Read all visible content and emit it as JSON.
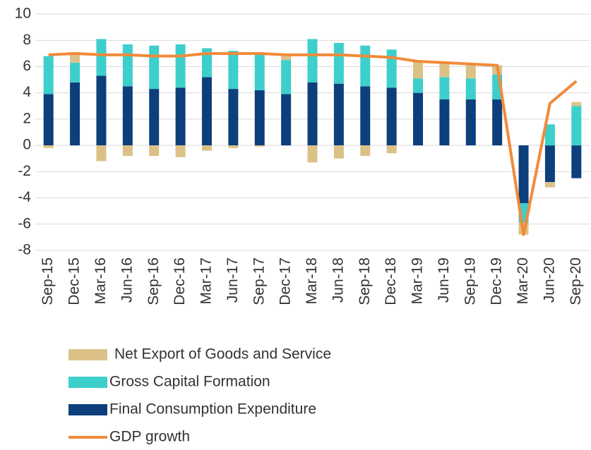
{
  "chart_data": {
    "type": "bar",
    "stacked": true,
    "categories": [
      "Sep-15",
      "Dec-15",
      "Mar-16",
      "Jun-16",
      "Sep-16",
      "Dec-16",
      "Mar-17",
      "Jun-17",
      "Sep-17",
      "Dec-17",
      "Mar-18",
      "Jun-18",
      "Sep-18",
      "Dec-18",
      "Mar-19",
      "Jun-19",
      "Sep-19",
      "Dec-19",
      "Mar-20",
      "Jun-20",
      "Sep-20"
    ],
    "series": [
      {
        "name": "Net Export of Goods and Service",
        "type": "bar",
        "color": "#dcc187",
        "values": [
          -0.2,
          0.8,
          -1.2,
          -0.8,
          -0.8,
          -0.9,
          -0.4,
          -0.2,
          -0.1,
          0.3,
          -1.3,
          -1.0,
          -0.8,
          -0.6,
          1.3,
          1.1,
          1.0,
          0.7,
          -0.9,
          -0.4,
          0.3
        ]
      },
      {
        "name": "Gross Capital Formation",
        "type": "bar",
        "color": "#3dcfcb",
        "values": [
          2.9,
          1.5,
          2.8,
          3.2,
          3.3,
          3.3,
          2.2,
          2.9,
          2.8,
          2.6,
          3.3,
          3.1,
          3.1,
          2.9,
          1.1,
          1.7,
          1.6,
          1.9,
          -1.5,
          1.6,
          3.0
        ]
      },
      {
        "name": "Final Consumption Expenditure",
        "type": "bar",
        "color": "#0d3f7c",
        "values": [
          3.9,
          4.8,
          5.3,
          4.5,
          4.3,
          4.4,
          5.2,
          4.3,
          4.2,
          3.9,
          4.8,
          4.7,
          4.5,
          4.4,
          4.0,
          3.5,
          3.5,
          3.5,
          -4.4,
          -2.8,
          -2.5
        ]
      },
      {
        "name": "GDP growth",
        "type": "line",
        "color": "#f28a3a",
        "values": [
          6.9,
          7.0,
          6.9,
          6.9,
          6.8,
          6.8,
          7.0,
          7.0,
          7.0,
          6.9,
          6.9,
          6.9,
          6.8,
          6.7,
          6.4,
          6.3,
          6.2,
          6.1,
          -6.8,
          3.2,
          4.9
        ]
      }
    ],
    "ylim": [
      -8,
      10
    ],
    "yticks": [
      -8,
      -6,
      -4,
      -2,
      0,
      2,
      4,
      6,
      8,
      10
    ],
    "grid": true
  }
}
